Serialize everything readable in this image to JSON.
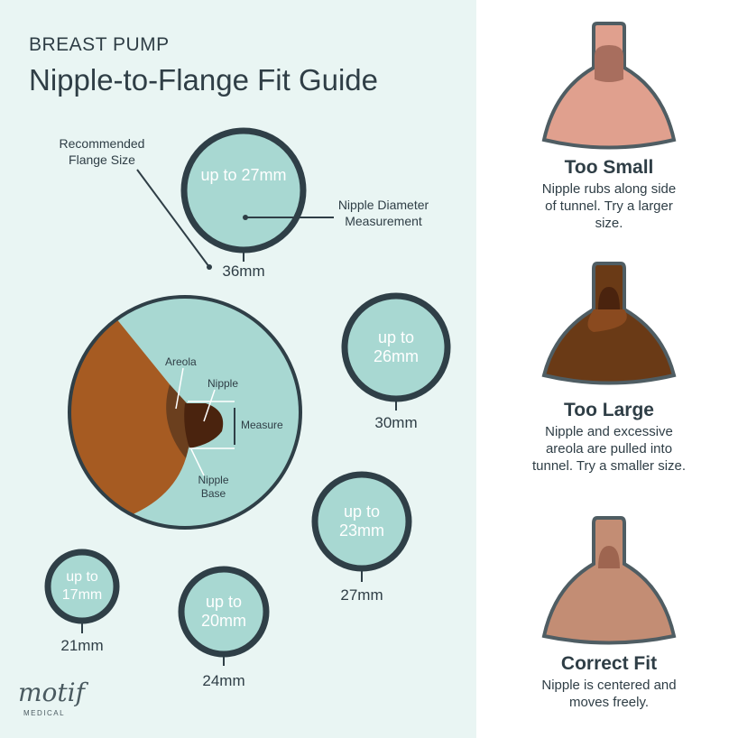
{
  "header": {
    "supertitle": "BREAST PUMP",
    "title": "Nipple-to-Flange Fit Guide"
  },
  "legend": {
    "recommended": "Recommended Flange Size",
    "diameter": "Nipple Diameter Measurement"
  },
  "sizes": [
    {
      "nipple": "up to 27mm",
      "flange": "36mm"
    },
    {
      "nipple": "up to 26mm",
      "flange": "30mm"
    },
    {
      "nipple": "up to 23mm",
      "flange": "27mm"
    },
    {
      "nipple": "up to 20mm",
      "flange": "24mm"
    },
    {
      "nipple": "up to 17mm",
      "flange": "21mm"
    }
  ],
  "anatomy": {
    "areola": "Areola",
    "nipple": "Nipple",
    "measure": "Measure",
    "base": "Nipple Base"
  },
  "fits": [
    {
      "title": "Too Small",
      "desc": "Nipple rubs along side of tunnel. Try a larger size.",
      "color": "#e0a08e"
    },
    {
      "title": "Too Large",
      "desc": "Nipple and excessive areola are pulled into tunnel. Try a smaller size.",
      "color": "#6a3a16"
    },
    {
      "title": "Correct Fit",
      "desc": "Nipple is centered and moves freely.",
      "color": "#c38d74"
    }
  ],
  "logo": {
    "brand": "motif",
    "sub": "MEDICAL"
  },
  "colors": {
    "circle": "#a8d8d2",
    "ring": "#2f3f47",
    "skin": "#a65b22",
    "areola": "#6b3f1e",
    "nipple": "#4a230e"
  }
}
